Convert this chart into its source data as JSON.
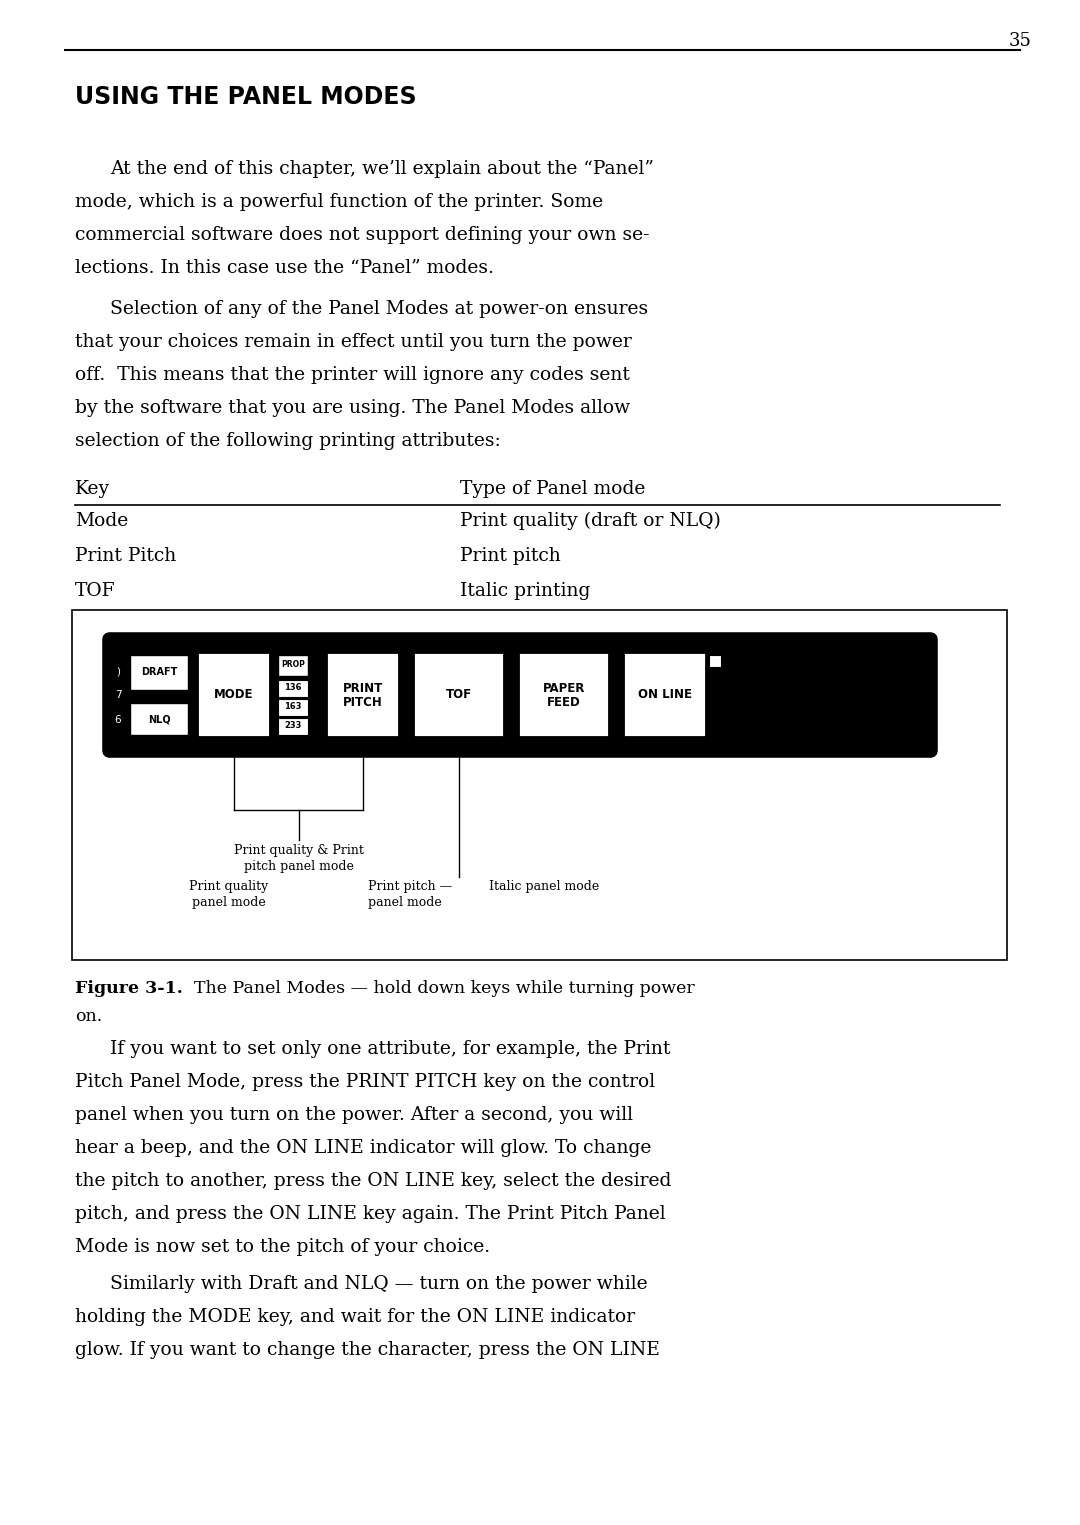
{
  "page_number": "35",
  "bg_color": "#ffffff",
  "text_color": "#000000",
  "section_title": "USING THE PANEL MODES",
  "para1_lines": [
    "At the end of this chapter, we’ll explain about the “Panel”",
    "mode, which is a powerful function of the printer. Some",
    "commercial software does not support defining your own se-",
    "lections. In this case use the “Panel” modes."
  ],
  "para2_lines": [
    "Selection of any of the Panel Modes at power-on ensures",
    "that your choices remain in effect until you turn the power",
    "off.  This means that the printer will ignore any codes sent",
    "by the software that you are using. The Panel Modes allow",
    "selection of the following printing attributes:"
  ],
  "table_header_key": "Key",
  "table_header_type": "Type of Panel mode",
  "table_rows": [
    [
      "Mode",
      "Print quality (draft or NLQ)"
    ],
    [
      "Print Pitch",
      "Print pitch"
    ],
    [
      "TOF",
      "Italic printing"
    ]
  ],
  "para3_lines": [
    "If you want to set only one attribute, for example, the Print",
    "Pitch Panel Mode, press the PRINT PITCH key on the control",
    "panel when you turn on the power. After a second, you will",
    "hear a beep, and the ON LINE indicator will glow. To change",
    "the pitch to another, press the ON LINE key, select the desired",
    "pitch, and press the ON LINE key again. The Print Pitch Panel",
    "Mode is now set to the pitch of your choice."
  ],
  "para4_lines": [
    "Similarly with Draft and NLQ — turn on the power while",
    "holding the MODE key, and wait for the ON LINE indicator",
    "glow. If you want to change the character, press the ON LINE"
  ]
}
